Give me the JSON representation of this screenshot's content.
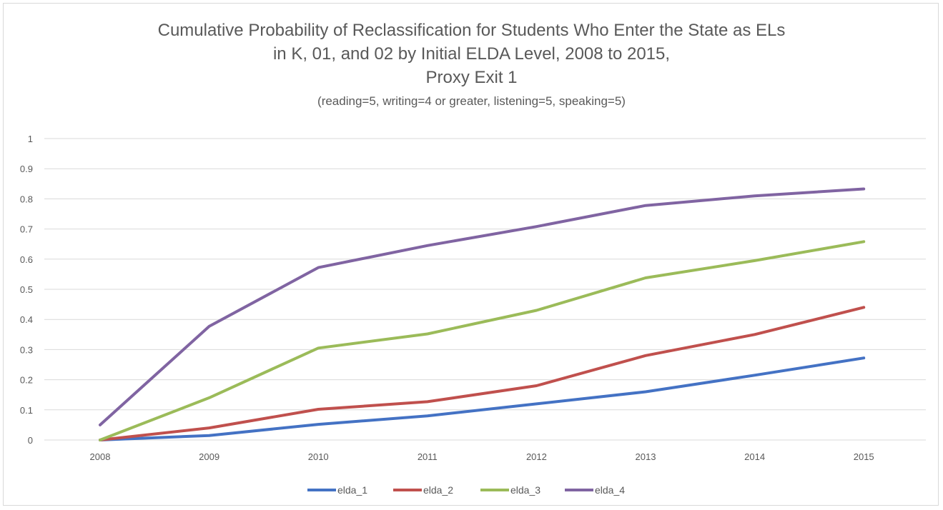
{
  "chart_data": {
    "type": "line",
    "title": [
      "Cumulative Probability of Reclassification for Students Who Enter the State as ELs",
      "in K, 01, and 02 by Initial ELDA Level, 2008 to 2015,",
      "Proxy Exit 1"
    ],
    "subtitle": "(reading=5, writing=4 or greater, listening=5, speaking=5)",
    "xlabel": "",
    "ylabel": "",
    "categories": [
      "2008",
      "2009",
      "2010",
      "2011",
      "2012",
      "2013",
      "2014",
      "2015"
    ],
    "ylim": [
      0,
      1
    ],
    "yticks": [
      "0",
      "0.1",
      "0.2",
      "0.3",
      "0.4",
      "0.5",
      "0.6",
      "0.7",
      "0.8",
      "0.9",
      "1"
    ],
    "grid": "horizontal",
    "legend_position": "bottom",
    "series": [
      {
        "name": "elda_1",
        "color": "#4472c4",
        "values": [
          0.0,
          0.015,
          0.052,
          0.08,
          0.12,
          0.16,
          0.215,
          0.272
        ]
      },
      {
        "name": "elda_2",
        "color": "#c0504d",
        "values": [
          0.0,
          0.04,
          0.102,
          0.127,
          0.18,
          0.28,
          0.35,
          0.44
        ]
      },
      {
        "name": "elda_3",
        "color": "#9bbb59",
        "values": [
          0.0,
          0.14,
          0.305,
          0.352,
          0.43,
          0.538,
          0.595,
          0.658
        ]
      },
      {
        "name": "elda_4",
        "color": "#8064a2",
        "values": [
          0.05,
          0.377,
          0.572,
          0.645,
          0.708,
          0.778,
          0.81,
          0.833
        ]
      }
    ],
    "gridline_color": "#d9d9d9"
  }
}
